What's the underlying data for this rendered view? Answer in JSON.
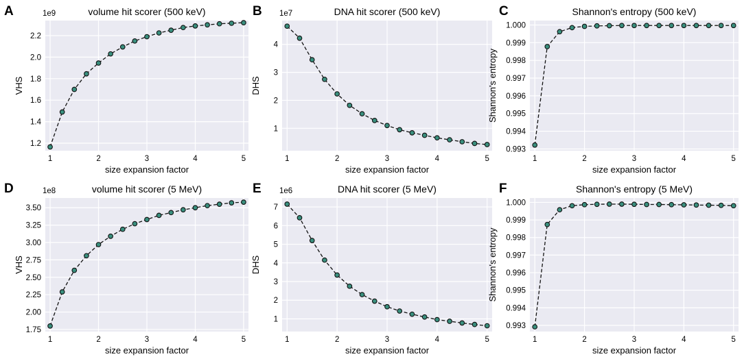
{
  "colors": {
    "background": "#eaeaf2",
    "grid": "#ffffff",
    "marker_fill": "#3a8f7e",
    "line": "#111111"
  },
  "chart_data": [
    {
      "panel": "A",
      "type": "line",
      "title": "volume hit scorer (500 keV)",
      "xlabel": "size expansion factor",
      "ylabel": "VHS",
      "offset_text": "1e9",
      "xlim": [
        0.9,
        5.1
      ],
      "ylim": [
        1.13,
        2.34
      ],
      "xticks": [
        "1",
        "2",
        "3",
        "4",
        "5"
      ],
      "xtick_values": [
        1,
        2,
        3,
        4,
        5
      ],
      "yticks": [
        "1.2",
        "1.4",
        "1.6",
        "1.8",
        "2.0",
        "2.2"
      ],
      "ytick_values": [
        1.2,
        1.4,
        1.6,
        1.8,
        2.0,
        2.2
      ],
      "x": [
        1,
        1.25,
        1.5,
        1.75,
        2,
        2.25,
        2.5,
        2.75,
        3,
        3.25,
        3.5,
        3.75,
        4,
        4.25,
        4.5,
        4.75,
        5
      ],
      "y": [
        1.165,
        1.49,
        1.7,
        1.845,
        1.945,
        2.03,
        2.095,
        2.15,
        2.19,
        2.225,
        2.25,
        2.275,
        2.29,
        2.3,
        2.31,
        2.315,
        2.32
      ]
    },
    {
      "panel": "B",
      "type": "line",
      "title": "DNA hit scorer (500 keV)",
      "xlabel": "size expansion factor",
      "ylabel": "DHS",
      "offset_text": "1e7",
      "xlim": [
        0.9,
        5.1
      ],
      "ylim": [
        0.2,
        4.85
      ],
      "xticks": [
        "1",
        "2",
        "3",
        "4",
        "5"
      ],
      "xtick_values": [
        1,
        2,
        3,
        4,
        5
      ],
      "yticks": [
        "1",
        "2",
        "3",
        "4"
      ],
      "ytick_values": [
        1,
        2,
        3,
        4
      ],
      "x": [
        1,
        1.25,
        1.5,
        1.75,
        2,
        2.25,
        2.5,
        2.75,
        3,
        3.25,
        3.5,
        3.75,
        4,
        4.25,
        4.5,
        4.75,
        5
      ],
      "y": [
        4.65,
        4.22,
        3.45,
        2.75,
        2.23,
        1.82,
        1.52,
        1.28,
        1.1,
        0.95,
        0.84,
        0.75,
        0.66,
        0.59,
        0.52,
        0.46,
        0.42
      ]
    },
    {
      "panel": "C",
      "type": "line",
      "title": "Shannon's entropy (500 keV)",
      "xlabel": "size expansion factor",
      "ylabel": "Shannon's entropy",
      "offset_text": "",
      "xlim": [
        0.9,
        5.1
      ],
      "ylim": [
        0.9929,
        1.00025
      ],
      "xticks": [
        "1",
        "2",
        "3",
        "4",
        "5"
      ],
      "xtick_values": [
        1,
        2,
        3,
        4,
        5
      ],
      "yticks": [
        "0.993",
        "0.994",
        "0.995",
        "0.996",
        "0.997",
        "0.998",
        "0.999",
        "1.000"
      ],
      "ytick_values": [
        0.993,
        0.994,
        0.995,
        0.996,
        0.997,
        0.998,
        0.999,
        1.0
      ],
      "x": [
        1,
        1.25,
        1.5,
        1.75,
        2,
        2.25,
        2.5,
        2.75,
        3,
        3.25,
        3.5,
        3.75,
        4,
        4.25,
        4.5,
        4.75,
        5
      ],
      "y": [
        0.99322,
        0.99878,
        0.99962,
        0.99985,
        0.99992,
        0.99995,
        0.99996,
        0.99997,
        0.99997,
        0.99997,
        0.99997,
        0.99997,
        0.99997,
        0.99997,
        0.99997,
        0.99997,
        0.99997
      ]
    },
    {
      "panel": "D",
      "type": "line",
      "title": "volume hit scorer (5 MeV)",
      "xlabel": "size expansion factor",
      "ylabel": "VHS",
      "offset_text": "1e8",
      "xlim": [
        0.9,
        5.1
      ],
      "ylim": [
        1.72,
        3.64
      ],
      "xticks": [
        "1",
        "2",
        "3",
        "4",
        "5"
      ],
      "xtick_values": [
        1,
        2,
        3,
        4,
        5
      ],
      "yticks": [
        "1.75",
        "2.00",
        "2.25",
        "2.50",
        "2.75",
        "3.00",
        "3.25",
        "3.50"
      ],
      "ytick_values": [
        1.75,
        2.0,
        2.25,
        2.5,
        2.75,
        3.0,
        3.25,
        3.5
      ],
      "x": [
        1,
        1.25,
        1.5,
        1.75,
        2,
        2.25,
        2.5,
        2.75,
        3,
        3.25,
        3.5,
        3.75,
        4,
        4.25,
        4.5,
        4.75,
        5
      ],
      "y": [
        1.8,
        2.29,
        2.6,
        2.81,
        2.97,
        3.09,
        3.19,
        3.27,
        3.33,
        3.39,
        3.43,
        3.47,
        3.5,
        3.53,
        3.55,
        3.57,
        3.58
      ]
    },
    {
      "panel": "E",
      "type": "line",
      "title": "DNA hit scorer (5 MeV)",
      "xlabel": "size expansion factor",
      "ylabel": "DHS",
      "offset_text": "1e6",
      "xlim": [
        0.9,
        5.1
      ],
      "ylim": [
        0.32,
        7.48
      ],
      "xticks": [
        "1",
        "2",
        "3",
        "4",
        "5"
      ],
      "xtick_values": [
        1,
        2,
        3,
        4,
        5
      ],
      "yticks": [
        "1",
        "2",
        "3",
        "4",
        "5",
        "6",
        "7"
      ],
      "ytick_values": [
        1,
        2,
        3,
        4,
        5,
        6,
        7
      ],
      "x": [
        1,
        1.25,
        1.5,
        1.75,
        2,
        2.25,
        2.5,
        2.75,
        3,
        3.25,
        3.5,
        3.75,
        4,
        4.25,
        4.5,
        4.75,
        5
      ],
      "y": [
        7.15,
        6.42,
        5.2,
        4.15,
        3.35,
        2.75,
        2.3,
        1.95,
        1.65,
        1.42,
        1.25,
        1.1,
        0.96,
        0.87,
        0.78,
        0.7,
        0.63
      ]
    },
    {
      "panel": "F",
      "type": "line",
      "title": "Shannon's entropy (5 MeV)",
      "xlabel": "size expansion factor",
      "ylabel": "Shannon's entropy",
      "offset_text": "",
      "xlim": [
        0.9,
        5.1
      ],
      "ylim": [
        0.99265,
        1.00025
      ],
      "xticks": [
        "1",
        "2",
        "3",
        "4",
        "5"
      ],
      "xtick_values": [
        1,
        2,
        3,
        4,
        5
      ],
      "yticks": [
        "0.993",
        "0.994",
        "0.995",
        "0.996",
        "0.997",
        "0.998",
        "0.999",
        "1.000"
      ],
      "ytick_values": [
        0.993,
        0.994,
        0.995,
        0.996,
        0.997,
        0.998,
        0.999,
        1.0
      ],
      "x": [
        1,
        1.25,
        1.5,
        1.75,
        2,
        2.25,
        2.5,
        2.75,
        3,
        3.25,
        3.5,
        3.75,
        4,
        4.25,
        4.5,
        4.75,
        5
      ],
      "y": [
        0.99292,
        0.99874,
        0.99958,
        0.99981,
        0.99987,
        0.99989,
        0.9999,
        0.9999,
        0.99989,
        0.99988,
        0.99988,
        0.99987,
        0.99986,
        0.99985,
        0.99984,
        0.99983,
        0.99981
      ]
    }
  ]
}
